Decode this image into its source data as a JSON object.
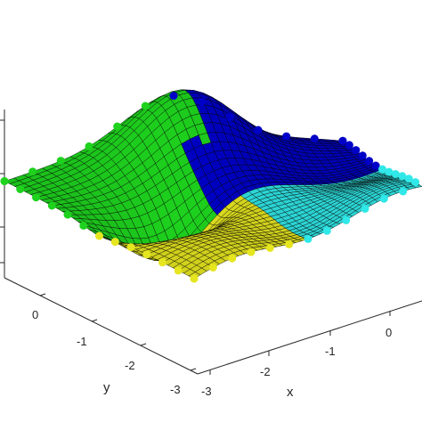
{
  "chart_data": {
    "type": "surface",
    "title": "",
    "xlabel": "x",
    "ylabel": "y",
    "zlabel": "",
    "x_ticks": [
      "-3",
      "-2",
      "-1",
      "0"
    ],
    "y_ticks": [
      "0",
      "-1",
      "-2",
      "-3"
    ],
    "xlim": [
      -3,
      0.3
    ],
    "ylim": [
      -3,
      0.3
    ],
    "grid": false,
    "legend": "none",
    "regions": [
      {
        "color": "#0000c8",
        "x_range": [
          -3,
          0
        ],
        "y_range": [
          -3,
          0
        ]
      },
      {
        "color": "#30e8e8",
        "x_range": [
          0,
          3
        ],
        "y_range": [
          -3,
          0
        ]
      },
      {
        "color": "#1ed21e",
        "x_range": [
          -3,
          0
        ],
        "y_range": [
          0,
          3
        ]
      },
      {
        "color": "#e6e620",
        "x_range": [
          0,
          3
        ],
        "y_range": [
          0,
          3
        ]
      }
    ],
    "boundary_markers": "filled circles along surface edges, colored by region",
    "colors": {
      "blue": "#0000c8",
      "cyan": "#30e8e8",
      "green": "#1ed21e",
      "yellow": "#e6e620",
      "mesh": "#000000",
      "axis": "#262626"
    }
  }
}
